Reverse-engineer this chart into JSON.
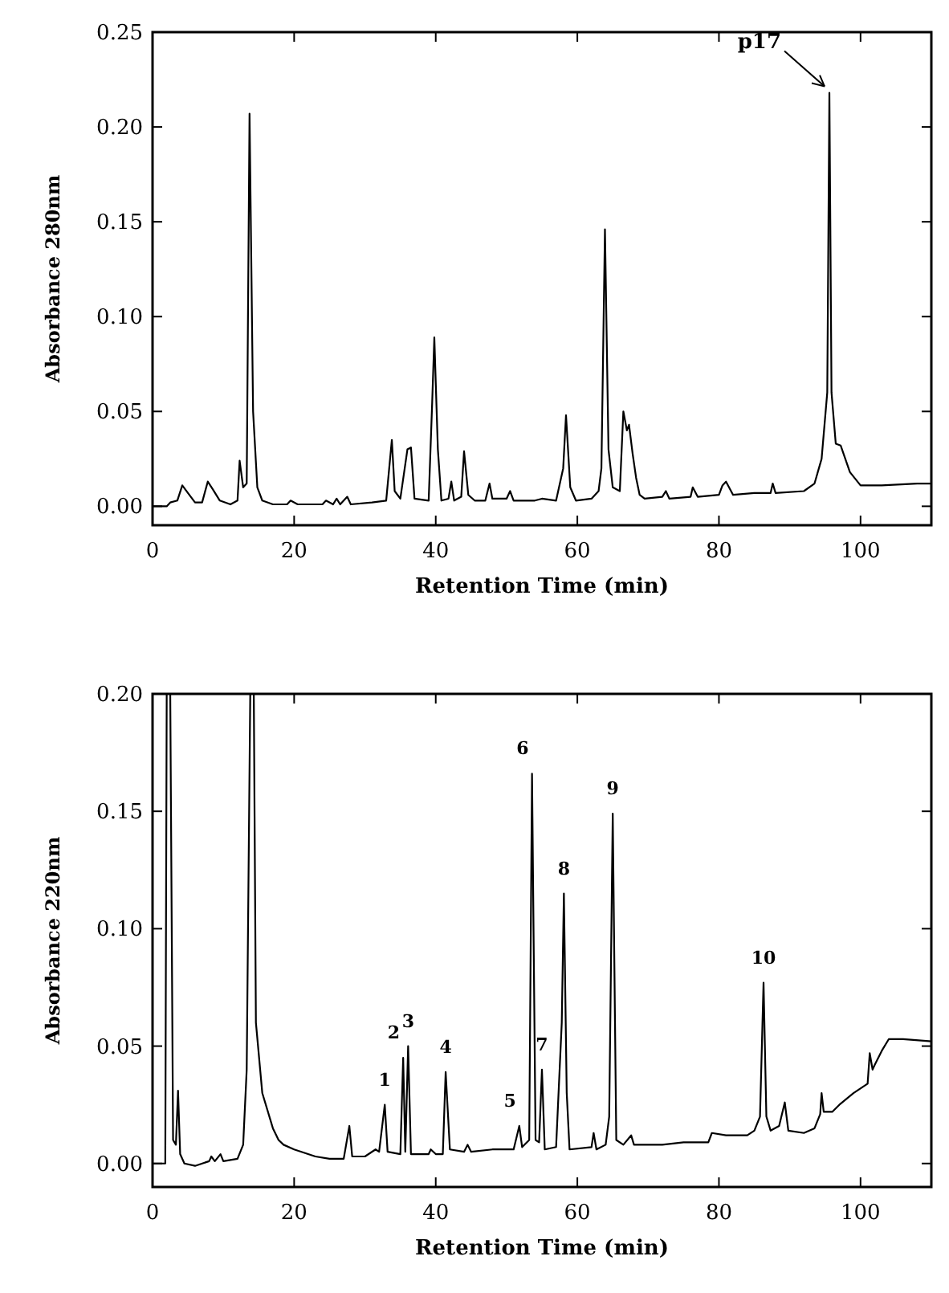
{
  "chart_data": [
    {
      "type": "line",
      "xlabel": "Retention Time (min)",
      "ylabel": "Absorbance 280nm",
      "xlim": [
        0,
        110
      ],
      "ylim": [
        -0.01,
        0.25
      ],
      "xticks": [
        0,
        20,
        40,
        60,
        80,
        100
      ],
      "yticks": [
        {
          "value": 0,
          "label": "0.00"
        },
        {
          "value": 0.05,
          "label": "0.05"
        },
        {
          "value": 0.1,
          "label": "0.10"
        },
        {
          "value": 0.15,
          "label": "0.15"
        },
        {
          "value": 0.2,
          "label": "0.20"
        },
        {
          "value": 0.25,
          "label": "0.25"
        }
      ],
      "grid": false,
      "marker": "none",
      "line_style": "solid",
      "annotations": [
        {
          "text": "p17",
          "x": 95.6,
          "y": 0.218
        }
      ],
      "series": [
        {
          "color": "#000000",
          "x": [
            0,
            2,
            2.5,
            3.5,
            4.2,
            5,
            6,
            7,
            7.8,
            8.5,
            9.5,
            11,
            12,
            12.3,
            12.8,
            13.3,
            13.7,
            14.2,
            14.8,
            15.5,
            17,
            19,
            19.5,
            20.5,
            22,
            24,
            24.5,
            25.5,
            26,
            26.5,
            27.5,
            28,
            31,
            33,
            33.8,
            34.2,
            35,
            36,
            36.5,
            37,
            39,
            39.5,
            39.8,
            40.3,
            40.8,
            41.8,
            42.2,
            42.6,
            43.6,
            44,
            44.6,
            45.5,
            47,
            47.6,
            48,
            50,
            50.5,
            51,
            54,
            55,
            57,
            58,
            58.4,
            59,
            59.8,
            62,
            63,
            63.4,
            63.9,
            64.4,
            65,
            66,
            66.5,
            67,
            67.3,
            67.8,
            68.3,
            68.8,
            69.5,
            72,
            72.5,
            73,
            76,
            76.3,
            77,
            80,
            80.5,
            81,
            82,
            85,
            87.3,
            87.6,
            88,
            92,
            93.5,
            94.5,
            95.3,
            95.6,
            95.9,
            96.5,
            97.2,
            98.5,
            100,
            103,
            108,
            110
          ],
          "values": [
            0,
            0,
            0.002,
            0.003,
            0.011,
            0.007,
            0.002,
            0.002,
            0.013,
            0.009,
            0.003,
            0.001,
            0.003,
            0.024,
            0.01,
            0.012,
            0.207,
            0.05,
            0.01,
            0.003,
            0.001,
            0.001,
            0.003,
            0.001,
            0.001,
            0.001,
            0.003,
            0.001,
            0.004,
            0.001,
            0.005,
            0.001,
            0.002,
            0.003,
            0.035,
            0.008,
            0.004,
            0.03,
            0.031,
            0.004,
            0.003,
            0.055,
            0.089,
            0.03,
            0.003,
            0.004,
            0.013,
            0.003,
            0.005,
            0.029,
            0.006,
            0.003,
            0.003,
            0.012,
            0.004,
            0.004,
            0.008,
            0.003,
            0.003,
            0.004,
            0.003,
            0.02,
            0.048,
            0.01,
            0.003,
            0.004,
            0.008,
            0.02,
            0.146,
            0.03,
            0.01,
            0.008,
            0.05,
            0.04,
            0.043,
            0.028,
            0.015,
            0.006,
            0.004,
            0.005,
            0.008,
            0.004,
            0.005,
            0.01,
            0.005,
            0.006,
            0.011,
            0.013,
            0.006,
            0.007,
            0.007,
            0.012,
            0.007,
            0.008,
            0.012,
            0.025,
            0.06,
            0.218,
            0.06,
            0.033,
            0.032,
            0.018,
            0.011,
            0.011,
            0.012,
            0.012
          ]
        }
      ]
    },
    {
      "type": "line",
      "xlabel": "Retention Time (min)",
      "ylabel": "Absorbance 220nm",
      "xlim": [
        0,
        110
      ],
      "ylim": [
        -0.01,
        0.2
      ],
      "xticks": [
        0,
        20,
        40,
        60,
        80,
        100
      ],
      "yticks": [
        {
          "value": 0,
          "label": "0.00"
        },
        {
          "value": 0.05,
          "label": "0.05"
        },
        {
          "value": 0.1,
          "label": "0.10"
        },
        {
          "value": 0.15,
          "label": "0.15"
        },
        {
          "value": 0.2,
          "label": "0.20"
        }
      ],
      "grid": false,
      "marker": "none",
      "line_style": "solid",
      "annotations": [
        {
          "text": "1",
          "x": 32.8,
          "y": 0.025
        },
        {
          "text": "2",
          "x": 35.4,
          "y": 0.045
        },
        {
          "text": "3",
          "x": 36.1,
          "y": 0.05
        },
        {
          "text": "4",
          "x": 41.4,
          "y": 0.039
        },
        {
          "text": "5",
          "x": 51.8,
          "y": 0.016
        },
        {
          "text": "6",
          "x": 53.6,
          "y": 0.166
        },
        {
          "text": "7",
          "x": 55,
          "y": 0.04
        },
        {
          "text": "8",
          "x": 58.1,
          "y": 0.115
        },
        {
          "text": "9",
          "x": 65,
          "y": 0.149
        },
        {
          "text": "10",
          "x": 86.3,
          "y": 0.077
        }
      ],
      "series": [
        {
          "color": "#000000",
          "x": [
            0,
            1.8,
            2,
            2.5,
            2.9,
            3.3,
            3.6,
            3.9,
            4.5,
            6,
            8,
            8.3,
            8.8,
            9.6,
            10,
            12,
            12.8,
            13.3,
            13.8,
            14.3,
            14.6,
            15.5,
            17,
            17.8,
            18.5,
            20,
            23,
            25,
            27,
            27.8,
            28.2,
            30,
            31.5,
            32,
            32.8,
            33.2,
            35,
            35.4,
            35.7,
            36.1,
            36.5,
            39,
            39.3,
            40,
            41,
            41.4,
            42,
            44,
            44.5,
            45,
            48,
            50,
            51,
            51.8,
            52.2,
            53.2,
            53.6,
            54.1,
            54.6,
            55,
            55.4,
            57,
            57.8,
            58.1,
            58.5,
            58.9,
            62,
            62.3,
            62.7,
            64,
            64.5,
            65,
            65.5,
            66.5,
            67.6,
            68,
            72,
            75,
            78.5,
            79,
            81,
            84,
            85,
            85.8,
            86.3,
            86.7,
            87.3,
            88.5,
            89.3,
            89.8,
            92,
            93.5,
            94.3,
            94.5,
            94.8,
            96,
            97,
            99,
            101,
            101.3,
            101.7,
            102,
            103,
            104,
            106,
            110
          ],
          "values": [
            0,
            0,
            0.2,
            0.2,
            0.01,
            0.008,
            0.031,
            0.004,
            0,
            -0.001,
            0.001,
            0.003,
            0.001,
            0.004,
            0.001,
            0.002,
            0.008,
            0.04,
            0.2,
            0.2,
            0.06,
            0.03,
            0.015,
            0.01,
            0.008,
            0.006,
            0.003,
            0.002,
            0.002,
            0.016,
            0.003,
            0.003,
            0.006,
            0.005,
            0.025,
            0.005,
            0.004,
            0.045,
            0.005,
            0.05,
            0.004,
            0.004,
            0.006,
            0.004,
            0.004,
            0.039,
            0.006,
            0.005,
            0.008,
            0.005,
            0.006,
            0.006,
            0.006,
            0.016,
            0.007,
            0.01,
            0.166,
            0.01,
            0.009,
            0.04,
            0.006,
            0.007,
            0.06,
            0.115,
            0.03,
            0.006,
            0.007,
            0.013,
            0.006,
            0.008,
            0.02,
            0.149,
            0.01,
            0.008,
            0.012,
            0.008,
            0.008,
            0.009,
            0.009,
            0.013,
            0.012,
            0.012,
            0.014,
            0.02,
            0.077,
            0.02,
            0.014,
            0.016,
            0.026,
            0.014,
            0.013,
            0.015,
            0.021,
            0.03,
            0.022,
            0.022,
            0.025,
            0.03,
            0.034,
            0.047,
            0.04,
            0.042,
            0.048,
            0.053,
            0.053,
            0.052
          ]
        }
      ]
    }
  ]
}
